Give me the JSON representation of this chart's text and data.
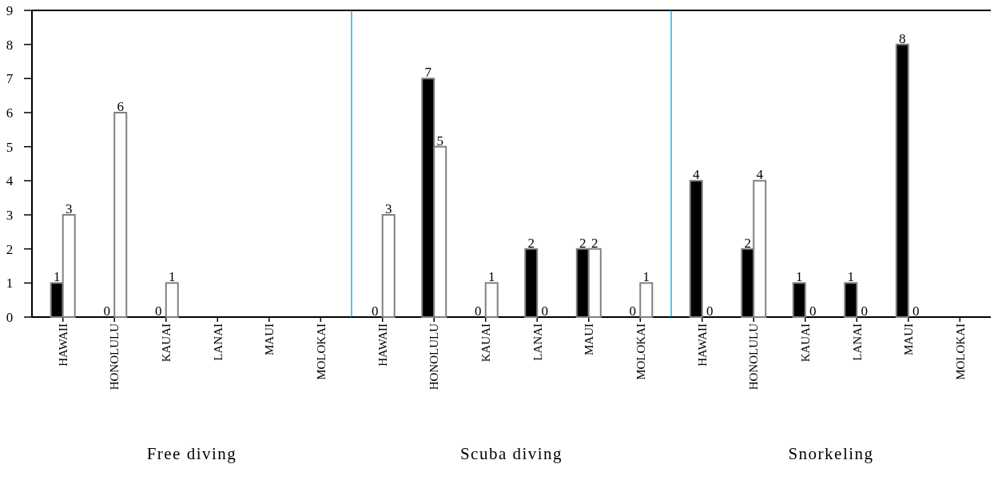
{
  "chart_data": [
    {
      "type": "bar",
      "categories": [
        "HAWAII",
        "HONOLULU",
        "KAUAI",
        "LANAI",
        "MAUI",
        "MOLOKAI"
      ],
      "xlabel": "Free diving",
      "ylim": [
        0,
        9
      ],
      "yticks": [
        0,
        1,
        2,
        3,
        4,
        5,
        6,
        7,
        8,
        9
      ],
      "data_labels": true,
      "grid": false,
      "series": [
        {
          "color": "#000000",
          "values": [
            1,
            0,
            0,
            null,
            null,
            null
          ]
        },
        {
          "color": "#ffffff",
          "values": [
            3,
            6,
            1,
            null,
            null,
            null
          ]
        }
      ]
    },
    {
      "type": "bar",
      "categories": [
        "HAWAII",
        "HONOLULU",
        "KAUAI",
        "LANAI",
        "MAUI",
        "MOLOKAI"
      ],
      "xlabel": "Scuba diving",
      "ylim": [
        0,
        9
      ],
      "tick_labels": "x",
      "data_labels": true,
      "grid": false,
      "series": [
        {
          "color": "#000000",
          "values": [
            0,
            7,
            0,
            2,
            2,
            0
          ]
        },
        {
          "color": "#ffffff",
          "values": [
            3,
            5,
            1,
            0,
            2,
            1
          ]
        }
      ]
    },
    {
      "type": "bar",
      "categories": [
        "HAWAII",
        "HONOLULU",
        "KAUAI",
        "LANAI",
        "MAUI",
        "MOLOKAI"
      ],
      "xlabel": "Snorkeling",
      "ylim": [
        0,
        9
      ],
      "tick_labels": "x",
      "data_labels": true,
      "grid": false,
      "series": [
        {
          "color": "#000000",
          "values": [
            4,
            2,
            1,
            1,
            8,
            null
          ]
        },
        {
          "color": "#ffffff",
          "values": [
            0,
            4,
            0,
            0,
            0,
            null
          ]
        }
      ]
    }
  ]
}
